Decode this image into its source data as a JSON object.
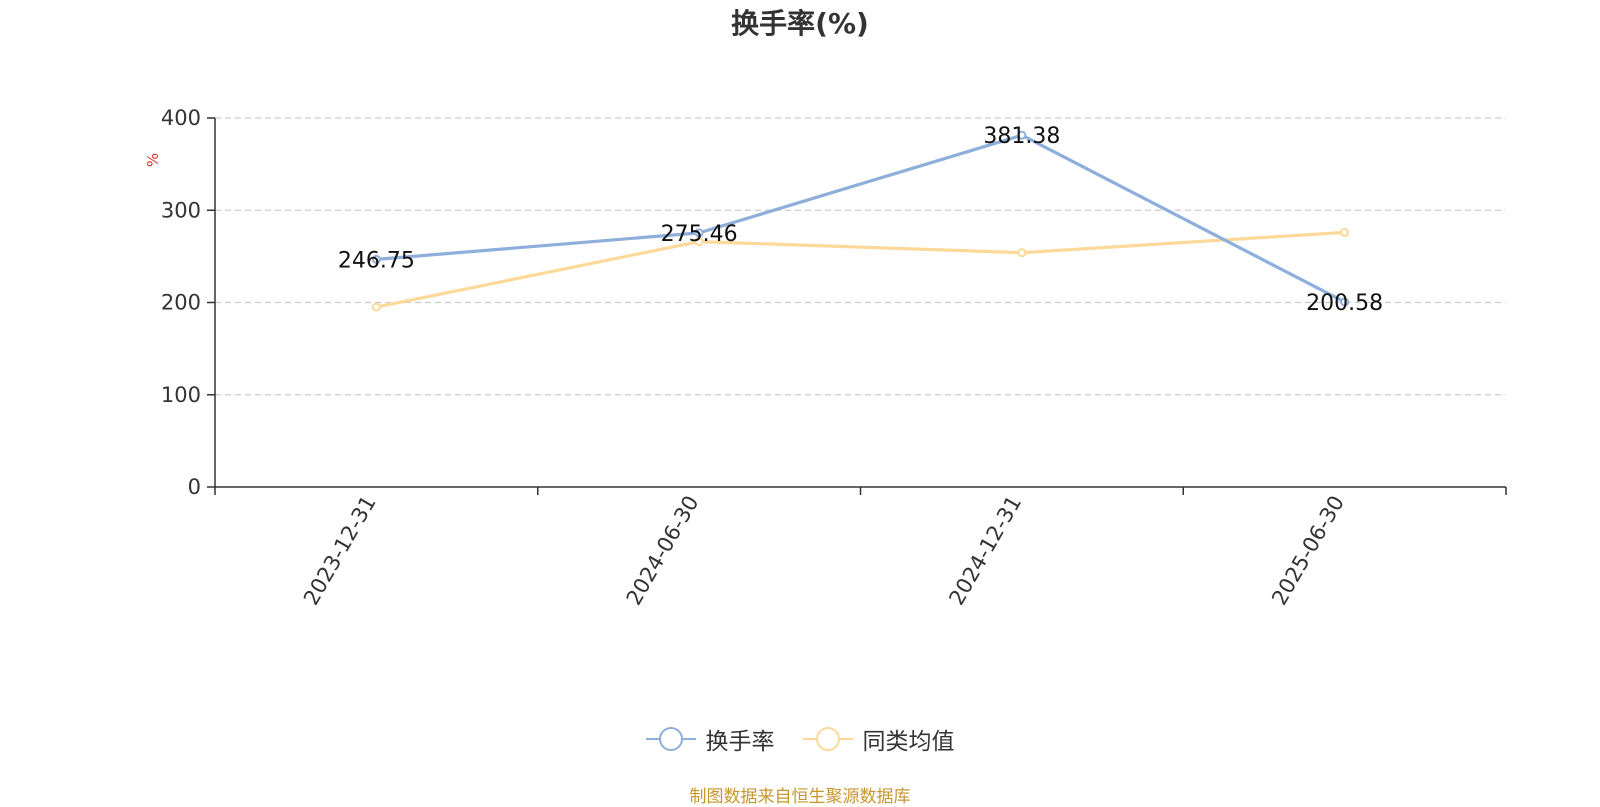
{
  "chart_data": {
    "type": "line",
    "title": "换手率(%)",
    "ylabel": "%",
    "xlabel": "",
    "ylim": [
      0,
      400
    ],
    "yticks": [
      0,
      100,
      200,
      300,
      400
    ],
    "grid": true,
    "legend_position": "bottom",
    "categories": [
      "2023-12-31",
      "2024-06-30",
      "2024-12-31",
      "2025-06-30"
    ],
    "series": [
      {
        "name": "换手率",
        "values": [
          246.75,
          275.46,
          381.38,
          200.58
        ],
        "color": "#8eaedb",
        "data_labels": [
          "246.75",
          "275.46",
          "381.38",
          "200.58"
        ]
      },
      {
        "name": "同类均值",
        "values": [
          195,
          266,
          254,
          276
        ],
        "color": "#fdd999"
      }
    ]
  },
  "legend": {
    "icon": "circle-line-icon"
  },
  "source_note": "制图数据来自恒生聚源数据库",
  "colors": {
    "axis": "#333333",
    "grid": "#cccccc",
    "ylabel": "#e8312f",
    "source": "#c8962e"
  }
}
